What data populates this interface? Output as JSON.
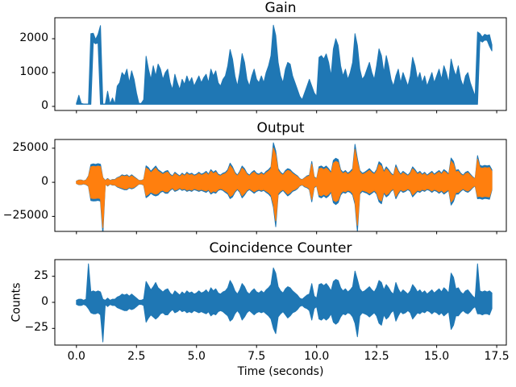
{
  "chart_data": [
    {
      "id": "gain",
      "type": "line",
      "title": "Gain",
      "color": "#1f77b4",
      "xlim": [
        -0.9,
        17.9
      ],
      "ylim": [
        -120,
        2620
      ],
      "grid": false,
      "legend": null,
      "yticks": [
        {
          "v": 0,
          "label": "0"
        },
        {
          "v": 1000,
          "label": "1000"
        },
        {
          "v": 2000,
          "label": "2000"
        }
      ],
      "xticks": [
        0,
        2.5,
        5,
        7.5,
        10,
        12.5,
        15,
        17.5
      ],
      "xtick_labels": null,
      "series": {
        "t0": 0,
        "dt": 0.1,
        "hi": [
          90,
          330,
          90,
          70,
          70,
          70,
          2150,
          2160,
          1980,
          2130,
          2390,
          70,
          70,
          450,
          70,
          250,
          70,
          600,
          700,
          1000,
          900,
          1100,
          700,
          1050,
          800,
          400,
          90,
          90,
          200,
          1480,
          1100,
          800,
          1200,
          900,
          1250,
          1100,
          800,
          1000,
          1100,
          700,
          500,
          950,
          700,
          500,
          800,
          650,
          900,
          700,
          850,
          600,
          750,
          900,
          700,
          850,
          950,
          700,
          1100,
          900,
          1050,
          700,
          600,
          800,
          900,
          1200,
          1680,
          1400,
          900,
          600,
          1000,
          1560,
          1300,
          800,
          600,
          900,
          1100,
          800,
          700,
          900,
          700,
          1000,
          1200,
          1500,
          2400,
          2100,
          1300,
          900,
          700,
          1100,
          1300,
          1250,
          900,
          700,
          500,
          300,
          200,
          400,
          600,
          800,
          600,
          400,
          300,
          1450,
          1500,
          1400,
          1550,
          1300,
          900,
          1700,
          2000,
          1800,
          1200,
          900,
          1100,
          800,
          1000,
          1300,
          2150,
          1800,
          1100,
          800,
          900,
          1100,
          1300,
          1000,
          800,
          1200,
          1700,
          1500,
          1000,
          1500,
          1200,
          800,
          600,
          900,
          1100,
          700,
          1000,
          800,
          600,
          900,
          1450,
          1200,
          800,
          1000,
          700,
          900,
          600,
          800,
          1000,
          700,
          900,
          1100,
          800,
          1200,
          1000,
          700,
          1400,
          1100,
          900,
          1200,
          800,
          600,
          900,
          1000,
          700,
          500,
          300,
          2200,
          2150,
          2050,
          2130,
          2100,
          2120,
          1820
        ],
        "lo_default": 60,
        "lo_overrides": {
          "7": 1900,
          "8": 1850,
          "9": 1880,
          "168": 1950,
          "169": 1900,
          "170": 1960,
          "171": 1950,
          "172": 1780,
          "173": 1640
        }
      }
    },
    {
      "id": "output",
      "type": "line",
      "title": "Output",
      "color": "#ff7f0e",
      "under_color": "#1f77b4",
      "under_scale": 1.15,
      "xlim": [
        -0.9,
        17.9
      ],
      "ylim": [
        -36000,
        31400
      ],
      "grid": false,
      "legend": null,
      "yticks": [
        {
          "v": -25000,
          "label": "−25000"
        },
        {
          "v": 0,
          "label": "0"
        },
        {
          "v": 25000,
          "label": "25000"
        }
      ],
      "xticks": [
        0,
        2.5,
        5,
        7.5,
        10,
        12.5,
        15,
        17.5
      ],
      "xtick_labels": null,
      "series": {
        "t0": 0,
        "dt": 0.1,
        "hi": [
          800,
          1500,
          1500,
          1000,
          1500,
          4000,
          11300,
          11800,
          11400,
          11900,
          11500,
          3000,
          1200,
          2400,
          1200,
          1800,
          1800,
          3000,
          3600,
          4800,
          4200,
          4800,
          3600,
          4800,
          3600,
          2400,
          1200,
          1200,
          1800,
          10500,
          9300,
          7000,
          8700,
          10400,
          8100,
          7000,
          5800,
          7000,
          7500,
          5200,
          4100,
          6400,
          5200,
          4100,
          5800,
          4600,
          6400,
          5200,
          5800,
          4600,
          5200,
          6400,
          5200,
          5800,
          7000,
          5200,
          8100,
          6400,
          7500,
          5200,
          4600,
          5800,
          6400,
          8100,
          12200,
          9900,
          6400,
          4600,
          7000,
          10400,
          8700,
          5800,
          4600,
          6400,
          7500,
          5800,
          5200,
          6400,
          5200,
          7000,
          8100,
          9900,
          25200,
          20000,
          8700,
          6400,
          5200,
          7500,
          8700,
          8100,
          6400,
          5200,
          4100,
          2300,
          1700,
          2900,
          4100,
          4600,
          13300,
          3500,
          2300,
          9900,
          10400,
          9300,
          10400,
          8700,
          6400,
          14000,
          15300,
          14500,
          8100,
          6400,
          7500,
          5800,
          7000,
          8700,
          24200,
          15000,
          7500,
          5800,
          6400,
          7500,
          8700,
          7000,
          5800,
          8100,
          13100,
          11800,
          7000,
          9900,
          8100,
          5800,
          4600,
          11100,
          7500,
          5200,
          7000,
          5800,
          4600,
          6400,
          9900,
          8100,
          5800,
          7000,
          5200,
          6400,
          4600,
          5800,
          7000,
          5200,
          6400,
          7500,
          5800,
          8100,
          7000,
          5200,
          15500,
          13300,
          7500,
          8100,
          5800,
          4600,
          6400,
          7000,
          5200,
          3500,
          2300,
          17000,
          10800,
          10300,
          10800,
          10500,
          10800,
          8000
        ],
        "lo": [
          -800,
          -1500,
          -1500,
          -1000,
          -1500,
          -2500,
          -11600,
          -11900,
          -11800,
          -11500,
          -12000,
          -33300,
          -1200,
          -2400,
          -1200,
          -1800,
          -1800,
          -3000,
          -3600,
          -4200,
          -4800,
          -4800,
          -3600,
          -4200,
          -3600,
          -2400,
          -1200,
          -1200,
          -1800,
          -9800,
          -8700,
          -7000,
          -8100,
          -8700,
          -8100,
          -6400,
          -5800,
          -7000,
          -7000,
          -5200,
          -4100,
          -5800,
          -5200,
          -4100,
          -5200,
          -4600,
          -5800,
          -5200,
          -5800,
          -4600,
          -5200,
          -5800,
          -5200,
          -5800,
          -6400,
          -5200,
          -7500,
          -6400,
          -7000,
          -5200,
          -4600,
          -5200,
          -6400,
          -7500,
          -10400,
          -9300,
          -6400,
          -4600,
          -6400,
          -9900,
          -8100,
          -5800,
          -4600,
          -5800,
          -7000,
          -5800,
          -5200,
          -5800,
          -5200,
          -6400,
          -7500,
          -9300,
          -16000,
          -28300,
          -8100,
          -6400,
          -5200,
          -7000,
          -8700,
          -7500,
          -5800,
          -5200,
          -4100,
          -2300,
          -1700,
          -2900,
          -3500,
          -4600,
          -12500,
          -3500,
          -2300,
          -9300,
          -9900,
          -8700,
          -9900,
          -8700,
          -6400,
          -13000,
          -14200,
          -13000,
          -8100,
          -6400,
          -7000,
          -5800,
          -6400,
          -8100,
          -14000,
          -31500,
          -7500,
          -5800,
          -6400,
          -7000,
          -8100,
          -7000,
          -5800,
          -7500,
          -12400,
          -13700,
          -7000,
          -9300,
          -8100,
          -5800,
          -4600,
          -10500,
          -7500,
          -5200,
          -6400,
          -5800,
          -4600,
          -5800,
          -9300,
          -7500,
          -5800,
          -6400,
          -5200,
          -5800,
          -4600,
          -5200,
          -6400,
          -5200,
          -5800,
          -7000,
          -5800,
          -7500,
          -6400,
          -5200,
          -14500,
          -12200,
          -7500,
          -7500,
          -5800,
          -4600,
          -5800,
          -6400,
          -5200,
          -3500,
          -2300,
          -10500,
          -10300,
          -10800,
          -10300,
          -10500,
          -10800,
          -5000
        ]
      }
    },
    {
      "id": "coincidence-counter",
      "type": "line",
      "title": "Coincidence Counter",
      "color": "#1f77b4",
      "xlabel": "Time (seconds)",
      "ylabel": "Counts",
      "xlim": [
        -0.9,
        17.9
      ],
      "ylim": [
        -41,
        41
      ],
      "grid": false,
      "legend": null,
      "yticks": [
        {
          "v": -25,
          "label": "−25"
        },
        {
          "v": 0,
          "label": "0"
        },
        {
          "v": 25,
          "label": "25"
        }
      ],
      "xticks": [
        0,
        2.5,
        5,
        7.5,
        10,
        12.5,
        15,
        17.5
      ],
      "xtick_labels": [
        "0.0",
        "2.5",
        "5.0",
        "7.5",
        "10.0",
        "12.5",
        "15.0",
        "17.5"
      ],
      "series": {
        "t0": 0,
        "dt": 0.1,
        "hi": [
          2,
          3,
          3,
          2,
          3,
          37,
          10,
          11,
          10,
          11,
          10,
          3,
          2,
          4,
          2,
          3,
          3,
          5,
          6,
          8,
          7,
          8,
          6,
          8,
          6,
          4,
          2,
          2,
          3,
          20,
          16,
          12,
          15,
          19,
          14,
          12,
          10,
          12,
          13,
          9,
          7,
          11,
          9,
          7,
          10,
          8,
          11,
          9,
          10,
          8,
          9,
          11,
          9,
          10,
          12,
          9,
          14,
          11,
          13,
          9,
          8,
          10,
          11,
          14,
          21,
          17,
          11,
          8,
          12,
          18,
          15,
          10,
          8,
          11,
          13,
          10,
          9,
          11,
          9,
          12,
          14,
          17,
          33,
          28,
          15,
          11,
          9,
          13,
          15,
          14,
          11,
          9,
          7,
          4,
          3,
          5,
          7,
          8,
          18,
          6,
          4,
          17,
          18,
          16,
          18,
          15,
          11,
          20,
          22,
          21,
          14,
          11,
          13,
          10,
          12,
          15,
          30,
          22,
          13,
          10,
          11,
          13,
          15,
          12,
          10,
          14,
          21,
          19,
          12,
          17,
          14,
          10,
          8,
          19,
          13,
          9,
          12,
          10,
          8,
          11,
          17,
          14,
          10,
          12,
          9,
          11,
          8,
          10,
          12,
          9,
          11,
          13,
          10,
          14,
          12,
          9,
          28,
          24,
          13,
          14,
          10,
          8,
          11,
          12,
          9,
          6,
          4,
          37,
          11,
          10,
          11,
          10,
          11,
          9
        ],
        "lo": [
          -2,
          -3,
          -3,
          -2,
          -3,
          -6,
          -10,
          -11,
          -11,
          -10,
          -12,
          -38,
          -2,
          -4,
          -2,
          -3,
          -3,
          -5,
          -6,
          -7,
          -8,
          -8,
          -6,
          -7,
          -6,
          -4,
          -2,
          -2,
          -3,
          -19,
          -15,
          -12,
          -14,
          -16,
          -14,
          -11,
          -10,
          -12,
          -12,
          -9,
          -7,
          -10,
          -9,
          -7,
          -9,
          -8,
          -10,
          -9,
          -10,
          -8,
          -9,
          -10,
          -9,
          -10,
          -11,
          -9,
          -13,
          -11,
          -12,
          -9,
          -8,
          -9,
          -11,
          -13,
          -18,
          -16,
          -11,
          -8,
          -11,
          -17,
          -14,
          -10,
          -8,
          -10,
          -12,
          -10,
          -9,
          -10,
          -9,
          -11,
          -13,
          -16,
          -25,
          -30,
          -14,
          -11,
          -9,
          -12,
          -15,
          -13,
          -10,
          -9,
          -7,
          -4,
          -3,
          -5,
          -6,
          -8,
          -17,
          -6,
          -4,
          -16,
          -17,
          -15,
          -17,
          -15,
          -11,
          -19,
          -21,
          -19,
          -14,
          -11,
          -12,
          -10,
          -11,
          -14,
          -20,
          -33,
          -13,
          -10,
          -11,
          -12,
          -14,
          -12,
          -10,
          -13,
          -20,
          -22,
          -12,
          -16,
          -14,
          -10,
          -8,
          -18,
          -13,
          -9,
          -11,
          -10,
          -8,
          -10,
          -16,
          -13,
          -10,
          -11,
          -9,
          -10,
          -8,
          -9,
          -11,
          -9,
          -10,
          -12,
          -10,
          -13,
          -11,
          -9,
          -26,
          -22,
          -13,
          -13,
          -10,
          -8,
          -10,
          -11,
          -9,
          -6,
          -4,
          -11,
          -11,
          -12,
          -11,
          -11,
          -12,
          -6
        ]
      }
    }
  ]
}
